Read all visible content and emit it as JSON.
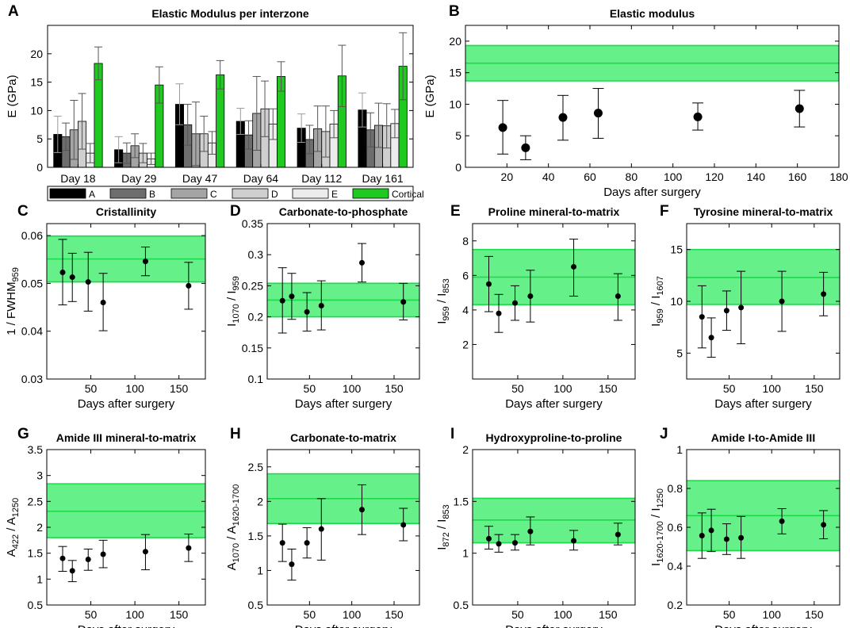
{
  "colors": {
    "band_fill": "#66f08a",
    "band_line": "#1bd94a",
    "axis": "#000000",
    "cortical": "#1fc91f",
    "zone_a": "#000000",
    "zone_b": "#6e6e6e",
    "zone_c": "#a4a4a4",
    "zone_d": "#cfcfcf",
    "zone_e": "#ececec"
  },
  "chart_data": [
    {
      "id": "A",
      "letter": "A",
      "type": "bar",
      "title": "Elastic Modulus per interzone",
      "xlabel": "",
      "ylabel": "E (GPa)",
      "ylim": [
        0,
        25
      ],
      "yticks": [
        0,
        5,
        10,
        15,
        20
      ],
      "grid": false,
      "categories": [
        "Day 18",
        "Day 29",
        "Day 47",
        "Day 64",
        "Day 112",
        "Day 161"
      ],
      "series": [
        {
          "name": "A",
          "color": "#000000",
          "values": [
            5.8,
            3.1,
            11.1,
            8.1,
            6.9,
            10.1
          ],
          "errors": [
            3.2,
            2.3,
            3.6,
            2.3,
            2.5,
            3.0
          ]
        },
        {
          "name": "B",
          "color": "#6e6e6e",
          "values": [
            5.4,
            2.5,
            7.5,
            5.7,
            4.9,
            6.6
          ],
          "errors": [
            2.4,
            1.8,
            3.6,
            2.5,
            2.5,
            3.0
          ]
        },
        {
          "name": "C",
          "color": "#a4a4a4",
          "values": [
            6.6,
            3.8,
            5.9,
            9.5,
            6.8,
            7.4
          ],
          "errors": [
            5.2,
            2.1,
            5.6,
            6.5,
            4.0,
            3.9
          ]
        },
        {
          "name": "D",
          "color": "#cfcfcf",
          "values": [
            8.1,
            2.5,
            5.9,
            10.3,
            6.3,
            7.3
          ],
          "errors": [
            4.9,
            1.7,
            3.1,
            4.9,
            4.5,
            3.9
          ]
        },
        {
          "name": "E",
          "color": "#ececec",
          "values": [
            2.5,
            1.5,
            4.3,
            7.6,
            7.6,
            7.7
          ],
          "errors": [
            1.7,
            1.0,
            2.0,
            2.7,
            2.4,
            2.5
          ]
        },
        {
          "name": "Cortical",
          "color": "#1fc91f",
          "values": [
            18.3,
            14.5,
            16.3,
            16.0,
            16.1,
            17.8
          ],
          "errors": [
            2.9,
            3.2,
            2.5,
            2.6,
            5.4,
            5.9
          ]
        }
      ],
      "legend": {
        "position": "bottom",
        "labels": [
          "A",
          "B",
          "C",
          "D",
          "E",
          "Cortical"
        ]
      }
    },
    {
      "id": "B",
      "letter": "B",
      "type": "scatter",
      "title": "Elastic modulus",
      "xlabel": "Days after surgery",
      "ylabel": "E (GPa)",
      "xlim": [
        0,
        180
      ],
      "ylim": [
        0,
        22.5
      ],
      "xticks": [
        20,
        40,
        60,
        80,
        100,
        120,
        140,
        160,
        180
      ],
      "yticks": [
        0,
        5,
        10,
        15,
        20
      ],
      "marker_size": 5.5,
      "points": [
        {
          "x": 18,
          "y": 6.3,
          "lo": 2.1,
          "hi": 10.6
        },
        {
          "x": 29,
          "y": 3.1,
          "lo": 1.2,
          "hi": 5.0
        },
        {
          "x": 47,
          "y": 7.9,
          "lo": 4.3,
          "hi": 11.4
        },
        {
          "x": 64,
          "y": 8.6,
          "lo": 4.6,
          "hi": 12.5
        },
        {
          "x": 112,
          "y": 8.0,
          "lo": 5.9,
          "hi": 10.2
        },
        {
          "x": 161,
          "y": 9.3,
          "lo": 6.4,
          "hi": 12.2
        }
      ],
      "band": {
        "low": 13.7,
        "mid": 16.5,
        "high": 19.3
      }
    },
    {
      "id": "C",
      "letter": "C",
      "type": "scatter",
      "title": "Cristallinity",
      "xlabel": "Days after surgery",
      "ylabel": "1 / FWHM",
      "ylabel_sub": "959",
      "xlim": [
        0,
        180
      ],
      "ylim": [
        0.03,
        0.0625
      ],
      "xticks": [
        50,
        100,
        150
      ],
      "yticks": [
        0.03,
        0.04,
        0.05,
        0.06
      ],
      "ytick_labels": [
        "0.03",
        "0.04",
        "0.05",
        "0.06"
      ],
      "marker_size": 3.5,
      "points": [
        {
          "x": 18,
          "y": 0.0523,
          "lo": 0.0455,
          "hi": 0.0592
        },
        {
          "x": 29,
          "y": 0.0513,
          "lo": 0.0462,
          "hi": 0.0563
        },
        {
          "x": 47,
          "y": 0.0503,
          "lo": 0.0442,
          "hi": 0.0565
        },
        {
          "x": 64,
          "y": 0.046,
          "lo": 0.0401,
          "hi": 0.0521
        },
        {
          "x": 112,
          "y": 0.0546,
          "lo": 0.0516,
          "hi": 0.0576
        },
        {
          "x": 161,
          "y": 0.0495,
          "lo": 0.0446,
          "hi": 0.0544
        }
      ],
      "band": {
        "low": 0.0503,
        "mid": 0.0551,
        "high": 0.0599
      }
    },
    {
      "id": "D",
      "letter": "D",
      "type": "scatter",
      "title": "Carbonate-to-phosphate",
      "xlabel": "Days after surgery",
      "ylabel": "I",
      "ylabel_sub": "1070",
      "ylabel_mid": " / I",
      "ylabel_sub2": "959",
      "xlim": [
        0,
        180
      ],
      "ylim": [
        0.1,
        0.35
      ],
      "xticks": [
        50,
        100,
        150
      ],
      "yticks": [
        0.1,
        0.15,
        0.2,
        0.25,
        0.3,
        0.35
      ],
      "ytick_labels": [
        "0.1",
        "0.15",
        "0.2",
        "0.25",
        "0.3",
        "0.35"
      ],
      "marker_size": 3.5,
      "points": [
        {
          "x": 18,
          "y": 0.226,
          "lo": 0.174,
          "hi": 0.279
        },
        {
          "x": 29,
          "y": 0.233,
          "lo": 0.196,
          "hi": 0.27
        },
        {
          "x": 47,
          "y": 0.208,
          "lo": 0.177,
          "hi": 0.239
        },
        {
          "x": 64,
          "y": 0.218,
          "lo": 0.179,
          "hi": 0.258
        },
        {
          "x": 112,
          "y": 0.287,
          "lo": 0.256,
          "hi": 0.318
        },
        {
          "x": 161,
          "y": 0.224,
          "lo": 0.195,
          "hi": 0.254
        }
      ],
      "band": {
        "low": 0.2,
        "mid": 0.227,
        "high": 0.254
      }
    },
    {
      "id": "E",
      "letter": "E",
      "type": "scatter",
      "title": "Proline mineral-to-matrix",
      "xlabel": "Days after surgery",
      "ylabel": "I",
      "ylabel_sub": "959",
      "ylabel_mid": " / I",
      "ylabel_sub2": "853",
      "xlim": [
        0,
        180
      ],
      "ylim": [
        0,
        9
      ],
      "xticks": [
        50,
        100,
        150
      ],
      "yticks": [
        2,
        4,
        6,
        8
      ],
      "ytick_labels": [
        "2",
        "4",
        "6",
        "8"
      ],
      "marker_size": 3.5,
      "points": [
        {
          "x": 18,
          "y": 5.5,
          "lo": 3.9,
          "hi": 7.1
        },
        {
          "x": 29,
          "y": 3.8,
          "lo": 2.7,
          "hi": 4.9
        },
        {
          "x": 47,
          "y": 4.4,
          "lo": 3.4,
          "hi": 5.4
        },
        {
          "x": 64,
          "y": 4.8,
          "lo": 3.3,
          "hi": 6.3
        },
        {
          "x": 112,
          "y": 6.5,
          "lo": 4.8,
          "hi": 8.1
        },
        {
          "x": 161,
          "y": 4.8,
          "lo": 3.4,
          "hi": 6.1
        }
      ],
      "band": {
        "low": 4.3,
        "mid": 5.9,
        "high": 7.5
      }
    },
    {
      "id": "F",
      "letter": "F",
      "type": "scatter",
      "title": "Tyrosine mineral-to-matrix",
      "xlabel": "Days after surgery",
      "ylabel": "I",
      "ylabel_sub": "959",
      "ylabel_mid": " / I",
      "ylabel_sub2": "1607",
      "xlim": [
        0,
        180
      ],
      "ylim": [
        2.5,
        17.5
      ],
      "xticks": [
        50,
        100,
        150
      ],
      "yticks": [
        5,
        10,
        15
      ],
      "ytick_labels": [
        "5",
        "10",
        "15"
      ],
      "marker_size": 3.5,
      "points": [
        {
          "x": 18,
          "y": 8.5,
          "lo": 5.5,
          "hi": 11.5
        },
        {
          "x": 29,
          "y": 6.5,
          "lo": 4.6,
          "hi": 8.4
        },
        {
          "x": 47,
          "y": 9.1,
          "lo": 7.2,
          "hi": 11.0
        },
        {
          "x": 64,
          "y": 9.4,
          "lo": 5.9,
          "hi": 12.9
        },
        {
          "x": 112,
          "y": 10.0,
          "lo": 7.1,
          "hi": 12.9
        },
        {
          "x": 161,
          "y": 10.7,
          "lo": 8.6,
          "hi": 12.8
        }
      ],
      "band": {
        "low": 9.7,
        "mid": 12.3,
        "high": 15.0
      }
    },
    {
      "id": "G",
      "letter": "G",
      "type": "scatter",
      "title": "Amide III mineral-to-matrix",
      "xlabel": "Days after surgery",
      "ylabel": "A",
      "ylabel_sub": "422",
      "ylabel_mid": " / A",
      "ylabel_sub2": "1250",
      "xlim": [
        0,
        180
      ],
      "ylim": [
        0.5,
        3.5
      ],
      "xticks": [
        50,
        100,
        150
      ],
      "yticks": [
        0.5,
        1,
        1.5,
        2,
        2.5,
        3,
        3.5
      ],
      "ytick_labels": [
        "0.5",
        "1",
        "1.5",
        "2",
        "2.5",
        "3",
        "3.5"
      ],
      "marker_size": 3.5,
      "points": [
        {
          "x": 18,
          "y": 1.4,
          "lo": 1.15,
          "hi": 1.63
        },
        {
          "x": 29,
          "y": 1.16,
          "lo": 0.95,
          "hi": 1.36
        },
        {
          "x": 47,
          "y": 1.38,
          "lo": 1.17,
          "hi": 1.58
        },
        {
          "x": 64,
          "y": 1.48,
          "lo": 1.22,
          "hi": 1.75
        },
        {
          "x": 112,
          "y": 1.53,
          "lo": 1.18,
          "hi": 1.86
        },
        {
          "x": 161,
          "y": 1.6,
          "lo": 1.34,
          "hi": 1.87
        }
      ],
      "band": {
        "low": 1.8,
        "mid": 2.31,
        "high": 2.84
      }
    },
    {
      "id": "H",
      "letter": "H",
      "type": "scatter",
      "title": "Carbonate-to-matrix",
      "xlabel": "Days after surgery",
      "ylabel": "A",
      "ylabel_sub": "1070",
      "ylabel_mid": " / A",
      "ylabel_sub2": "1620-1700",
      "xlim": [
        0,
        180
      ],
      "ylim": [
        0.5,
        2.75
      ],
      "xticks": [
        50,
        100,
        150
      ],
      "yticks": [
        0.5,
        1,
        1.5,
        2,
        2.5
      ],
      "ytick_labels": [
        "0.5",
        "1",
        "1.5",
        "2",
        "2.5"
      ],
      "marker_size": 3.5,
      "points": [
        {
          "x": 18,
          "y": 1.4,
          "lo": 1.13,
          "hi": 1.67
        },
        {
          "x": 29,
          "y": 1.09,
          "lo": 0.86,
          "hi": 1.31
        },
        {
          "x": 47,
          "y": 1.4,
          "lo": 1.18,
          "hi": 1.62
        },
        {
          "x": 64,
          "y": 1.6,
          "lo": 1.15,
          "hi": 2.04
        },
        {
          "x": 112,
          "y": 1.88,
          "lo": 1.52,
          "hi": 2.24
        },
        {
          "x": 161,
          "y": 1.66,
          "lo": 1.43,
          "hi": 1.9
        }
      ],
      "band": {
        "low": 1.68,
        "mid": 2.04,
        "high": 2.4
      }
    },
    {
      "id": "I",
      "letter": "I",
      "type": "scatter",
      "title": "Hydroxyproline-to-proline",
      "xlabel": "Days after surgery",
      "ylabel": "I",
      "ylabel_sub": "872",
      "ylabel_mid": " / I",
      "ylabel_sub2": "853",
      "xlim": [
        0,
        180
      ],
      "ylim": [
        0.5,
        2
      ],
      "xticks": [
        50,
        100,
        150
      ],
      "yticks": [
        0.5,
        1,
        1.5,
        2
      ],
      "ytick_labels": [
        "0.5",
        "1",
        "1.5",
        "2"
      ],
      "marker_size": 3.5,
      "points": [
        {
          "x": 18,
          "y": 1.14,
          "lo": 1.04,
          "hi": 1.26
        },
        {
          "x": 29,
          "y": 1.09,
          "lo": 1.01,
          "hi": 1.18
        },
        {
          "x": 47,
          "y": 1.1,
          "lo": 1.03,
          "hi": 1.18
        },
        {
          "x": 64,
          "y": 1.21,
          "lo": 1.08,
          "hi": 1.35
        },
        {
          "x": 112,
          "y": 1.12,
          "lo": 1.03,
          "hi": 1.22
        },
        {
          "x": 161,
          "y": 1.18,
          "lo": 1.08,
          "hi": 1.29
        }
      ],
      "band": {
        "low": 1.1,
        "mid": 1.32,
        "high": 1.53
      }
    },
    {
      "id": "J",
      "letter": "J",
      "type": "scatter",
      "title": "Amide I-to-Amide III",
      "xlabel": "Days after surgery",
      "ylabel": "I",
      "ylabel_sub": "1620-1700",
      "ylabel_mid": " / I",
      "ylabel_sub2": "1250",
      "xlim": [
        0,
        180
      ],
      "ylim": [
        0.2,
        1
      ],
      "xticks": [
        50,
        100,
        150
      ],
      "yticks": [
        0.2,
        0.4,
        0.6,
        0.8,
        1
      ],
      "ytick_labels": [
        "0.2",
        "0.4",
        "0.6",
        "0.8",
        "1"
      ],
      "marker_size": 3.5,
      "points": [
        {
          "x": 18,
          "y": 0.557,
          "lo": 0.44,
          "hi": 0.674
        },
        {
          "x": 29,
          "y": 0.584,
          "lo": 0.475,
          "hi": 0.693
        },
        {
          "x": 47,
          "y": 0.539,
          "lo": 0.46,
          "hi": 0.618
        },
        {
          "x": 64,
          "y": 0.546,
          "lo": 0.44,
          "hi": 0.656
        },
        {
          "x": 112,
          "y": 0.631,
          "lo": 0.566,
          "hi": 0.696
        },
        {
          "x": 161,
          "y": 0.613,
          "lo": 0.541,
          "hi": 0.686
        }
      ],
      "band": {
        "low": 0.48,
        "mid": 0.66,
        "high": 0.84
      }
    }
  ]
}
